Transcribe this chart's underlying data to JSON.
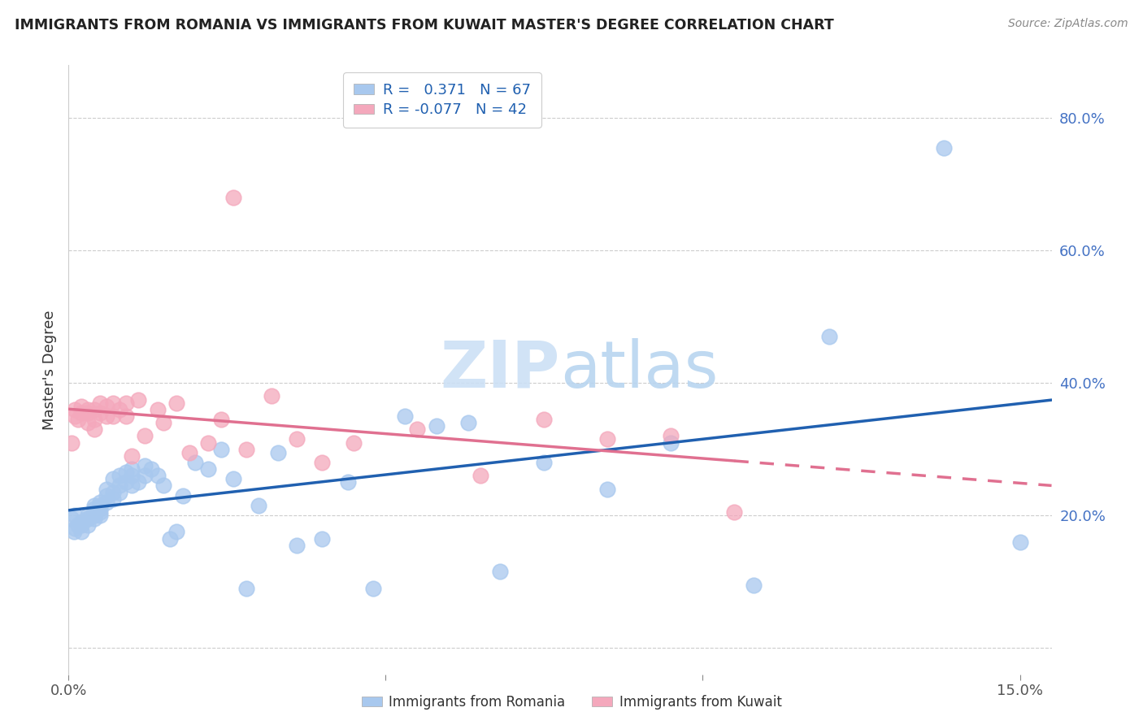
{
  "title": "IMMIGRANTS FROM ROMANIA VS IMMIGRANTS FROM KUWAIT MASTER'S DEGREE CORRELATION CHART",
  "source": "Source: ZipAtlas.com",
  "xlim": [
    0.0,
    0.155
  ],
  "ylim": [
    -0.04,
    0.88
  ],
  "romania_R": 0.371,
  "romania_N": 67,
  "kuwait_R": -0.077,
  "kuwait_N": 42,
  "romania_color": "#a8c8ee",
  "kuwait_color": "#f4a8bc",
  "romania_line_color": "#2060b0",
  "kuwait_line_color": "#e07090",
  "romania_x": [
    0.0005,
    0.0008,
    0.001,
    0.001,
    0.0015,
    0.002,
    0.002,
    0.002,
    0.003,
    0.003,
    0.003,
    0.003,
    0.004,
    0.004,
    0.004,
    0.004,
    0.004,
    0.005,
    0.005,
    0.005,
    0.005,
    0.005,
    0.006,
    0.006,
    0.006,
    0.007,
    0.007,
    0.007,
    0.008,
    0.008,
    0.008,
    0.009,
    0.009,
    0.01,
    0.01,
    0.01,
    0.011,
    0.012,
    0.012,
    0.013,
    0.014,
    0.015,
    0.016,
    0.017,
    0.018,
    0.02,
    0.022,
    0.024,
    0.026,
    0.028,
    0.03,
    0.033,
    0.036,
    0.04,
    0.044,
    0.048,
    0.053,
    0.058,
    0.063,
    0.068,
    0.075,
    0.085,
    0.095,
    0.108,
    0.12,
    0.138,
    0.15
  ],
  "romania_y": [
    0.195,
    0.175,
    0.18,
    0.2,
    0.185,
    0.19,
    0.175,
    0.185,
    0.195,
    0.2,
    0.185,
    0.195,
    0.2,
    0.21,
    0.195,
    0.205,
    0.215,
    0.22,
    0.21,
    0.2,
    0.215,
    0.205,
    0.23,
    0.22,
    0.24,
    0.235,
    0.225,
    0.255,
    0.245,
    0.26,
    0.235,
    0.265,
    0.25,
    0.26,
    0.245,
    0.27,
    0.25,
    0.275,
    0.26,
    0.27,
    0.26,
    0.245,
    0.165,
    0.175,
    0.23,
    0.28,
    0.27,
    0.3,
    0.255,
    0.09,
    0.215,
    0.295,
    0.155,
    0.165,
    0.25,
    0.09,
    0.35,
    0.335,
    0.34,
    0.115,
    0.28,
    0.24,
    0.31,
    0.095,
    0.47,
    0.755,
    0.16
  ],
  "kuwait_x": [
    0.0005,
    0.001,
    0.001,
    0.0015,
    0.002,
    0.002,
    0.003,
    0.003,
    0.003,
    0.004,
    0.004,
    0.004,
    0.005,
    0.005,
    0.006,
    0.006,
    0.007,
    0.007,
    0.008,
    0.009,
    0.009,
    0.01,
    0.011,
    0.012,
    0.014,
    0.015,
    0.017,
    0.019,
    0.022,
    0.024,
    0.026,
    0.028,
    0.032,
    0.036,
    0.04,
    0.045,
    0.055,
    0.065,
    0.075,
    0.085,
    0.095,
    0.105
  ],
  "kuwait_y": [
    0.31,
    0.35,
    0.36,
    0.345,
    0.365,
    0.355,
    0.355,
    0.34,
    0.36,
    0.345,
    0.33,
    0.36,
    0.37,
    0.355,
    0.365,
    0.35,
    0.37,
    0.35,
    0.36,
    0.37,
    0.35,
    0.29,
    0.375,
    0.32,
    0.36,
    0.34,
    0.37,
    0.295,
    0.31,
    0.345,
    0.68,
    0.3,
    0.38,
    0.315,
    0.28,
    0.31,
    0.33,
    0.26,
    0.345,
    0.315,
    0.32,
    0.205
  ],
  "legend1_text": "R =   0.371   N = 67",
  "legend2_text": "R = -0.077   N = 42",
  "legend_color": "#2060b0",
  "bottom_legend1": "Immigrants from Romania",
  "bottom_legend2": "Immigrants from Kuwait"
}
